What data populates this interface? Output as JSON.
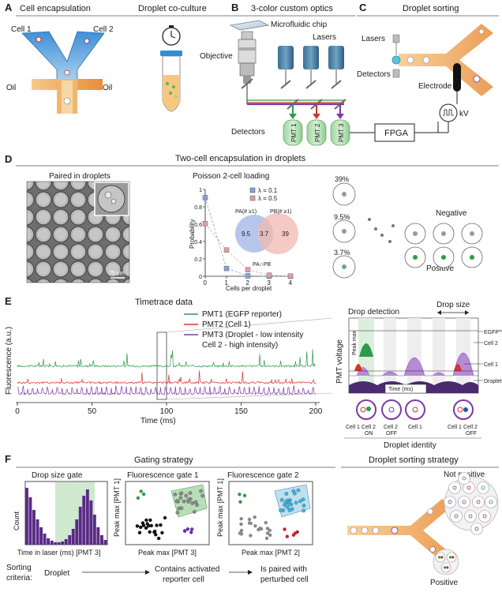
{
  "panel_a": {
    "letter": "A",
    "title_left": "Cell encapsulation",
    "title_right": "Droplet co-culture",
    "cell1": "Cell 1",
    "cell2": "Cell 2",
    "oil_left": "Oil",
    "oil_right": "Oil"
  },
  "panel_b": {
    "letter": "B",
    "title": "3-color custom optics",
    "chip": "Microfluidic chip",
    "objective": "Objective",
    "lasers": "Lasers",
    "detectors": "Detectors",
    "pmt1": "PMT 1",
    "pmt2": "PMT 2",
    "pmt3": "PMT 3",
    "fpga": "FPGA",
    "kv": "kV"
  },
  "panel_c": {
    "letter": "C",
    "title": "Droplet sorting",
    "lasers": "Lasers",
    "detectors": "Detectors",
    "electrode": "Electrode"
  },
  "panel_d": {
    "letter": "D",
    "title": "Two-cell encapsulation in droplets",
    "micrograph_title": "Paired in droplets",
    "scale_bar": "75 μm",
    "poisson_title": "Poisson 2-cell loading",
    "percent_1": "39%",
    "percent_2": "9.5%",
    "percent_3": "3.7%",
    "negative": "Negative",
    "positive": "Positive",
    "venn_a_label": "PA(# ≥1)",
    "venn_b_label": "PB(# ≥1)",
    "venn_a": "9.5",
    "venn_ab": "3.7",
    "venn_b": "39",
    "venn_intersection": "PA∩PB"
  },
  "panel_e": {
    "letter": "E",
    "title": "Timetrace data",
    "legend_1": "PMT1 (EGFP reporter)",
    "legend_2": "PMT2 (Cell 1)",
    "legend_3a": "PMT3 (Droplet - low intensity",
    "legend_3b": "Cell 2 - high intensity)",
    "drop_detection": "Drop detection",
    "drop_size": "Drop size",
    "peak_max": "Peak max",
    "pmt_voltage": "PMT voltage",
    "time_ms": "Time (ms)",
    "egfp": "EGFP",
    "egfp_sup": "signal",
    "cell2": "Cell 2",
    "cell1": "Cell 1",
    "droplet": "Droplet",
    "droplet_identity": "Droplet identity",
    "ids": [
      "Cell 1",
      "Cell 2\nON",
      "Cell 2\nOFF",
      "Cell 1",
      "Cell 2\nOFF"
    ]
  },
  "panel_f": {
    "letter": "F",
    "title_left": "Gating strategy",
    "title_right": "Droplet sorting strategy",
    "gate1_title": "Drop size gate",
    "gate2_title": "Fluorescence gate 1",
    "gate3_title": "Fluorescence gate 2",
    "count": "Count",
    "peak_max_pmt1": "Peak max [PMT 1]",
    "xlabel1": "Time in laser (ms) [PMT 3]",
    "xlabel2": "Peak max   [PMT 3]",
    "xlabel3": "Peak max   [PMT 2]",
    "sorting": "Sorting",
    "criteria": "criteria:",
    "crit_1": "Droplet",
    "crit_2a": "Contains activated",
    "crit_2b": "reporter cell",
    "crit_3a": "Is paired with",
    "crit_3b": "perturbed cell",
    "not_positive": "Not positive",
    "positive": "Positive"
  },
  "chart_data": [
    {
      "type": "scatter",
      "title": "",
      "xlabel": "Cells per droplet",
      "ylabel": "Probability",
      "xlim": [
        0,
        4
      ],
      "ylim": [
        0,
        1
      ],
      "xticks": [
        "0",
        "1",
        "2",
        "3",
        "4"
      ],
      "yticks": [
        "0",
        "0.2",
        "0.4",
        "0.6",
        "0.8",
        "1"
      ],
      "legend": "top-right",
      "series": [
        {
          "name": "λ = 0.1",
          "color": "#8aa0d6",
          "x": [
            0,
            1,
            2,
            3,
            4
          ],
          "values": [
            0.905,
            0.09,
            0.005,
            0.0,
            0.0
          ]
        },
        {
          "name": "λ = 0.5",
          "color": "#e0a0a0",
          "x": [
            0,
            1,
            2,
            3,
            4
          ],
          "values": [
            0.607,
            0.303,
            0.076,
            0.013,
            0.002
          ]
        }
      ]
    },
    {
      "type": "line",
      "title": "Timetrace data",
      "xlabel": "Time (ms)",
      "ylabel": "Fluorescence (a.u.)",
      "xlim": [
        0,
        200
      ],
      "xticks": [
        "0",
        "50",
        "100",
        "150",
        "200"
      ],
      "series": [
        {
          "name": "PMT1 (EGFP reporter)",
          "color": "#2e9b4a"
        },
        {
          "name": "PMT2 (Cell 1)",
          "color": "#d9332e"
        },
        {
          "name": "PMT3 (Droplet - low intensity",
          "color": "#7b3aa5"
        }
      ]
    }
  ]
}
